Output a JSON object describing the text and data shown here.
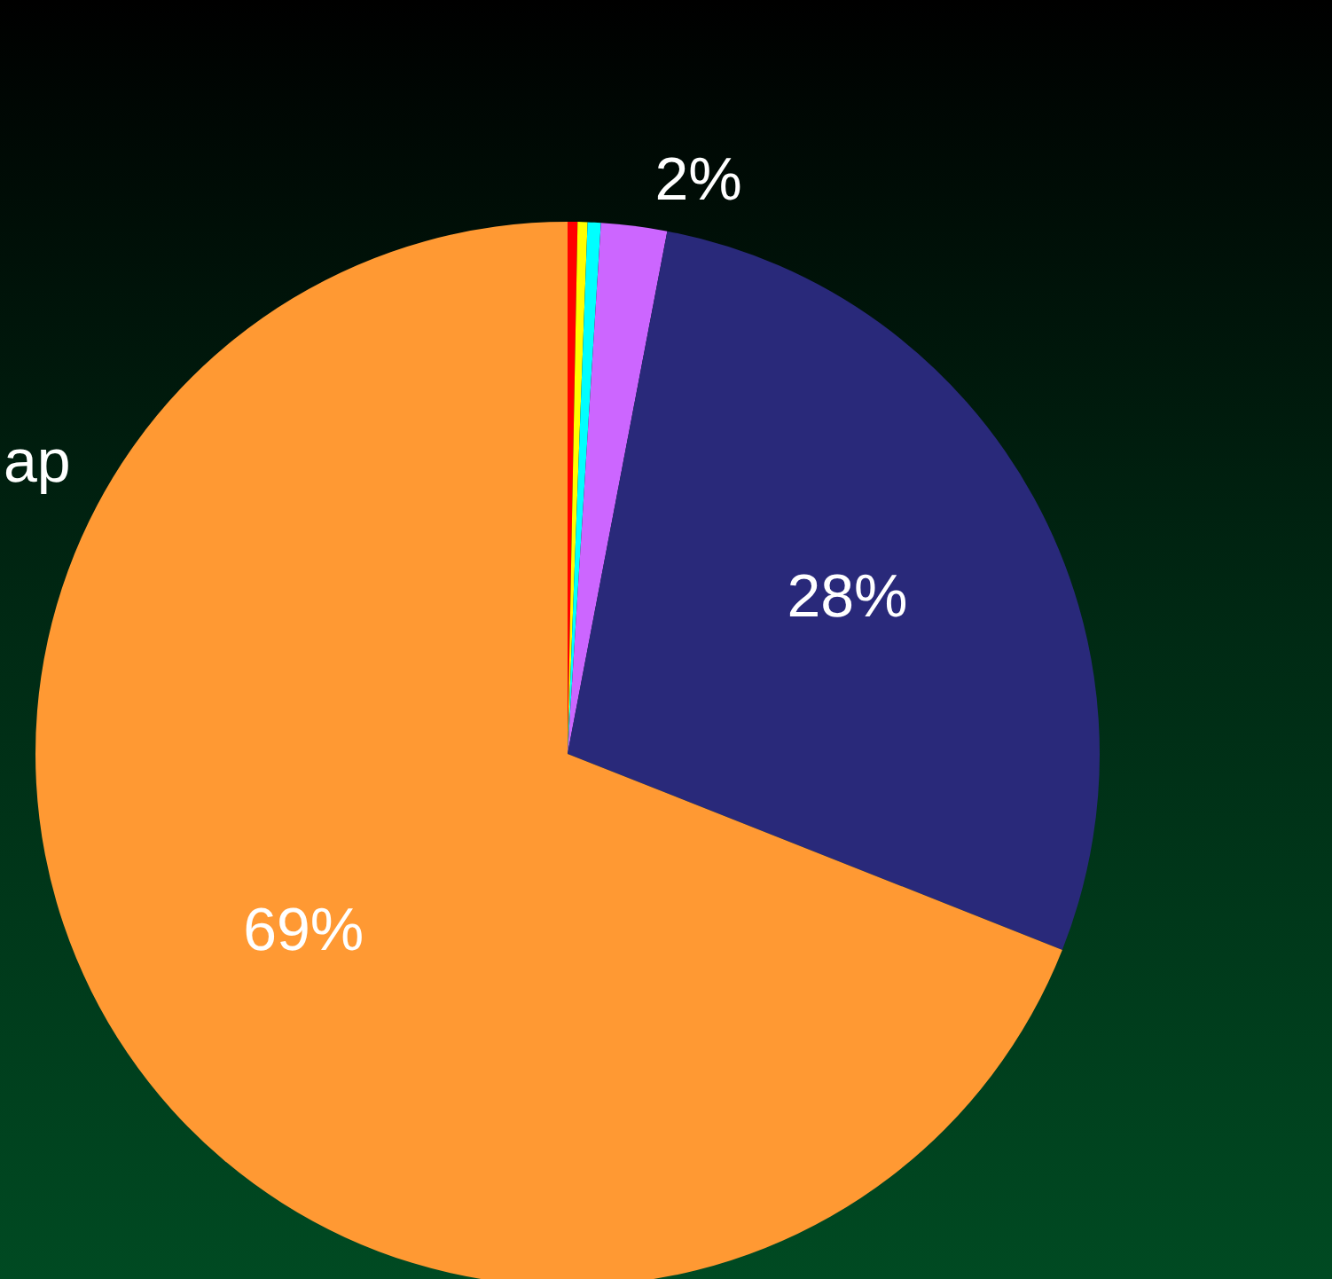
{
  "chart_data": {
    "type": "pie",
    "categories": [
      null,
      null,
      null,
      null,
      null,
      null
    ],
    "values": [
      0.3,
      0.3,
      0.4,
      2,
      28,
      69
    ],
    "colors": [
      "#ff0000",
      "#ffff00",
      "#00ffff",
      "#cc66ff",
      "#29297a",
      "#ff9933"
    ],
    "value_labels": [
      null,
      null,
      null,
      "2%",
      "28%",
      "69%"
    ],
    "annotations": [
      "ap"
    ],
    "legend": false
  }
}
